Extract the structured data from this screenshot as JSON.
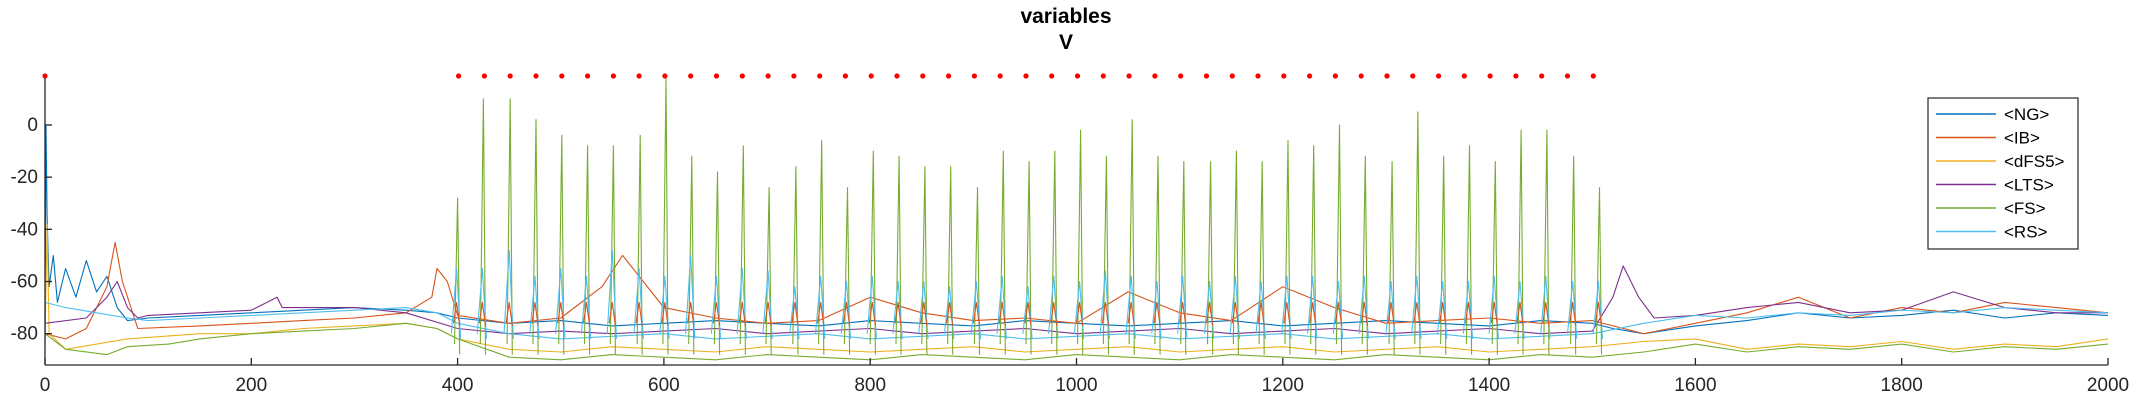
{
  "chart_data": {
    "type": "line",
    "title": "variables",
    "subtitle": "V",
    "xlabel": "",
    "ylabel": "",
    "xlim": [
      0,
      2000
    ],
    "ylim": [
      -92,
      18
    ],
    "xticks": [
      0,
      200,
      400,
      600,
      800,
      1000,
      1200,
      1400,
      1600,
      1800,
      2000
    ],
    "yticks": [
      0,
      -20,
      -40,
      -60,
      -80
    ],
    "grid": false,
    "legend_position": "top-right",
    "series": [
      {
        "name": "<NG>",
        "color": "#0072BD",
        "x": [
          0,
          1,
          2,
          4,
          8,
          12,
          20,
          30,
          40,
          50,
          60,
          70,
          80,
          100,
          150,
          200,
          250,
          300,
          350,
          380,
          400,
          450,
          500,
          550,
          600,
          650,
          700,
          750,
          800,
          850,
          900,
          950,
          1000,
          1050,
          1100,
          1150,
          1200,
          1250,
          1300,
          1350,
          1400,
          1450,
          1500,
          1520,
          1550,
          1600,
          1650,
          1700,
          1750,
          1800,
          1850,
          1900,
          1950,
          2000
        ],
        "values": [
          -75,
          0,
          -35,
          -62,
          -50,
          -68,
          -55,
          -66,
          -52,
          -64,
          -58,
          -70,
          -75,
          -74,
          -73,
          -72,
          -71,
          -70,
          -71,
          -72,
          -74,
          -76,
          -75,
          -77,
          -76,
          -75,
          -76,
          -77,
          -75,
          -76,
          -77,
          -75,
          -76,
          -77,
          -76,
          -75,
          -77,
          -76,
          -75,
          -76,
          -77,
          -75,
          -76,
          -78,
          -80,
          -77,
          -75,
          -72,
          -74,
          -73,
          -71,
          -74,
          -72,
          -73
        ]
      },
      {
        "name": "<IB>",
        "color": "#D95319",
        "x": [
          0,
          20,
          40,
          60,
          68,
          75,
          90,
          150,
          200,
          250,
          300,
          350,
          375,
          380,
          390,
          400,
          450,
          500,
          540,
          560,
          600,
          650,
          700,
          750,
          800,
          850,
          900,
          950,
          1000,
          1050,
          1100,
          1150,
          1200,
          1250,
          1300,
          1350,
          1400,
          1450,
          1500,
          1550,
          1600,
          1650,
          1700,
          1750,
          1800,
          1850,
          1900,
          1950,
          2000
        ],
        "values": [
          -80,
          -82,
          -78,
          -62,
          -45,
          -60,
          -78,
          -77,
          -76,
          -75,
          -74,
          -72,
          -66,
          -55,
          -60,
          -73,
          -76,
          -74,
          -62,
          -50,
          -70,
          -74,
          -76,
          -75,
          -66,
          -72,
          -75,
          -74,
          -76,
          -64,
          -72,
          -75,
          -62,
          -70,
          -76,
          -75,
          -74,
          -76,
          -75,
          -80,
          -76,
          -72,
          -66,
          -74,
          -70,
          -72,
          -68,
          -70,
          -72
        ]
      },
      {
        "name": "<dFS5>",
        "color": "#EDB120",
        "x": [
          0,
          2,
          4,
          20,
          50,
          80,
          150,
          200,
          250,
          300,
          350,
          380,
          400,
          450,
          500,
          550,
          600,
          650,
          700,
          750,
          800,
          850,
          900,
          950,
          1000,
          1050,
          1100,
          1150,
          1200,
          1250,
          1300,
          1350,
          1400,
          1450,
          1500,
          1550,
          1600,
          1650,
          1700,
          1750,
          1800,
          1850,
          1900,
          1950,
          2000
        ],
        "values": [
          -84,
          -38,
          -80,
          -86,
          -84,
          -82,
          -80,
          -80,
          -78,
          -77,
          -76,
          -78,
          -82,
          -86,
          -87,
          -85,
          -86,
          -87,
          -85,
          -86,
          -87,
          -86,
          -85,
          -87,
          -86,
          -85,
          -87,
          -86,
          -85,
          -87,
          -86,
          -85,
          -87,
          -86,
          -85,
          -83,
          -82,
          -86,
          -84,
          -85,
          -83,
          -86,
          -84,
          -85,
          -82
        ]
      },
      {
        "name": "<LTS>",
        "color": "#7E2F8E",
        "x": [
          0,
          40,
          60,
          70,
          80,
          90,
          100,
          150,
          200,
          225,
          230,
          250,
          300,
          350,
          400,
          450,
          500,
          550,
          600,
          650,
          700,
          750,
          800,
          850,
          900,
          950,
          1000,
          1050,
          1100,
          1150,
          1200,
          1250,
          1300,
          1350,
          1400,
          1450,
          1500,
          1520,
          1530,
          1545,
          1560,
          1600,
          1650,
          1700,
          1750,
          1800,
          1850,
          1900,
          1950,
          2000
        ],
        "values": [
          -76,
          -74,
          -66,
          -60,
          -70,
          -74,
          -73,
          -72,
          -71,
          -66,
          -70,
          -70,
          -70,
          -72,
          -78,
          -80,
          -79,
          -80,
          -79,
          -78,
          -80,
          -79,
          -78,
          -80,
          -79,
          -78,
          -80,
          -79,
          -78,
          -80,
          -79,
          -78,
          -80,
          -79,
          -78,
          -80,
          -79,
          -66,
          -54,
          -66,
          -74,
          -73,
          -70,
          -68,
          -72,
          -71,
          -64,
          -70,
          -72,
          -72
        ]
      },
      {
        "name": "<FS>",
        "color": "#77AC30",
        "x": [
          0,
          20,
          60,
          80,
          120,
          150,
          200,
          250,
          300,
          350,
          380,
          400,
          450,
          500,
          550,
          600,
          650,
          700,
          750,
          800,
          850,
          900,
          950,
          1000,
          1050,
          1100,
          1150,
          1200,
          1250,
          1300,
          1350,
          1400,
          1450,
          1500,
          1550,
          1600,
          1650,
          1700,
          1750,
          1800,
          1850,
          1900,
          1950,
          2000
        ],
        "values": [
          -80,
          -86,
          -88,
          -85,
          -84,
          -82,
          -80,
          -79,
          -78,
          -76,
          -78,
          -82,
          -89,
          -90,
          -88,
          -89,
          -90,
          -88,
          -89,
          -90,
          -88,
          -89,
          -90,
          -88,
          -89,
          -90,
          -88,
          -89,
          -90,
          -88,
          -89,
          -90,
          -88,
          -89,
          -87,
          -84,
          -87,
          -85,
          -86,
          -84,
          -87,
          -85,
          -86,
          -84
        ]
      },
      {
        "name": "<RS>",
        "color": "#4DBEEE",
        "x": [
          0,
          20,
          50,
          80,
          100,
          150,
          200,
          250,
          300,
          350,
          380,
          400,
          450,
          500,
          550,
          600,
          650,
          700,
          750,
          800,
          850,
          900,
          950,
          1000,
          1050,
          1100,
          1150,
          1200,
          1250,
          1300,
          1350,
          1400,
          1450,
          1500,
          1550,
          1600,
          1650,
          1700,
          1750,
          1800,
          1850,
          1900,
          1950,
          2000
        ],
        "values": [
          -68,
          -70,
          -72,
          -74,
          -75,
          -74,
          -73,
          -72,
          -71,
          -70,
          -72,
          -76,
          -80,
          -82,
          -81,
          -80,
          -82,
          -81,
          -80,
          -82,
          -81,
          -80,
          -82,
          -81,
          -80,
          -82,
          -81,
          -80,
          -82,
          -81,
          -80,
          -82,
          -81,
          -80,
          -76,
          -73,
          -74,
          -72,
          -73,
          -71,
          -72,
          -70,
          -71,
          -72
        ]
      }
    ],
    "spikes": {
      "x": [
        400,
        425,
        451,
        476,
        501,
        526,
        551,
        577,
        602,
        627,
        652,
        677,
        702,
        728,
        753,
        778,
        803,
        828,
        853,
        878,
        904,
        929,
        954,
        979,
        1004,
        1029,
        1054,
        1079,
        1104,
        1130,
        1155,
        1180,
        1205,
        1230,
        1255,
        1280,
        1306,
        1331,
        1356,
        1381,
        1406,
        1431,
        1456,
        1482,
        1507
      ],
      "fs_peaks": [
        -28,
        10,
        10,
        2,
        -4,
        -8,
        -8,
        -4,
        18,
        -12,
        -18,
        -8,
        -24,
        -16,
        -6,
        -24,
        -10,
        -12,
        -16,
        -16,
        -24,
        -10,
        -14,
        -10,
        -2,
        -12,
        2,
        -12,
        -14,
        -14,
        -10,
        -14,
        -6,
        -8,
        0,
        -12,
        -14,
        5,
        -12,
        -8,
        -14,
        -2,
        -2,
        -12,
        -24
      ],
      "rs_peaks": [
        -55,
        -55,
        -48,
        -58,
        -55,
        -58,
        -48,
        -55,
        -58,
        -50,
        -58,
        -55,
        -56,
        -62,
        -58,
        -60,
        -58,
        -60,
        -60,
        -62,
        -60,
        -58,
        -62,
        -58,
        -60,
        -56,
        -58,
        -60,
        -58,
        -60,
        -58,
        -60,
        -58,
        -58,
        -60,
        -58,
        -60,
        -58,
        -60,
        -60,
        -58,
        -60,
        -58,
        -60,
        -60
      ]
    },
    "stimulus_markers": {
      "color": "#ff0000",
      "level": 18,
      "x": [
        0,
        401,
        426,
        451,
        476,
        501,
        526,
        551,
        576,
        601,
        626,
        651,
        676,
        701,
        726,
        751,
        776,
        801,
        826,
        851,
        876,
        901,
        926,
        951,
        976,
        1001,
        1026,
        1051,
        1076,
        1101,
        1126,
        1151,
        1176,
        1201,
        1226,
        1251,
        1276,
        1301,
        1326,
        1351,
        1376,
        1401,
        1426,
        1451,
        1476,
        1501
      ]
    }
  }
}
